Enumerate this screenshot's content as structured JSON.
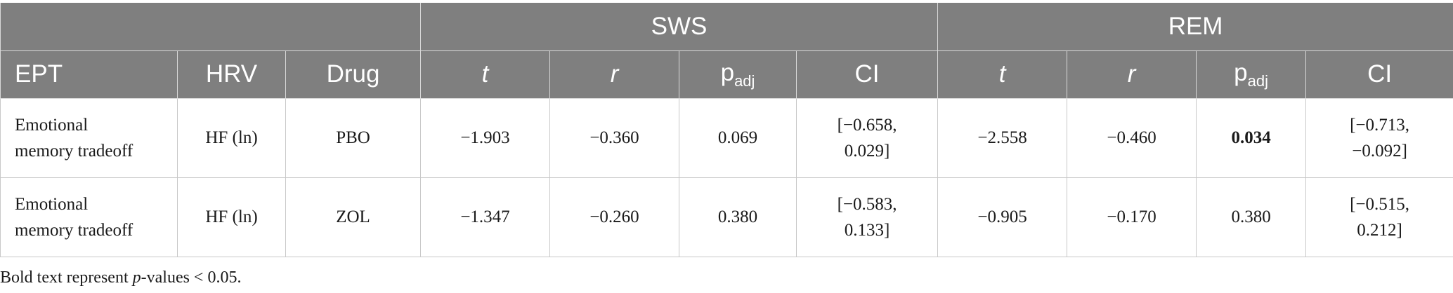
{
  "table": {
    "groups": {
      "sws": "SWS",
      "rem": "REM"
    },
    "headers": {
      "ept": "EPT",
      "hrv": "HRV",
      "drug": "Drug",
      "sws_t": "t",
      "sws_r": "r",
      "sws_p": "p",
      "sws_p_sub": "adj",
      "sws_ci": "CI",
      "rem_t": "t",
      "rem_r": "r",
      "rem_p": "p",
      "rem_p_sub": "adj",
      "rem_ci": "CI"
    },
    "rows": [
      {
        "ept_line1": "Emotional",
        "ept_line2": "memory tradeoff",
        "hrv": "HF (ln)",
        "drug": "PBO",
        "sws_t": "−1.903",
        "sws_r": "−0.360",
        "sws_p": "0.069",
        "sws_ci_line1": "[−0.658,",
        "sws_ci_line2": "0.029]",
        "rem_t": "−2.558",
        "rem_r": "−0.460",
        "rem_p": "0.034",
        "rem_ci_line1": "[−0.713,",
        "rem_ci_line2": "−0.092]"
      },
      {
        "ept_line1": "Emotional",
        "ept_line2": "memory tradeoff",
        "hrv": "HF (ln)",
        "drug": "ZOL",
        "sws_t": "−1.347",
        "sws_r": "−0.260",
        "sws_p": "0.380",
        "sws_ci_line1": "[−0.583,",
        "sws_ci_line2": "0.133]",
        "rem_t": "−0.905",
        "rem_r": "−0.170",
        "rem_p": "0.380",
        "rem_ci_line1": "[−0.515,",
        "rem_ci_line2": "0.212]"
      }
    ]
  },
  "footnote": {
    "prefix": "Bold text represent ",
    "italic": "p",
    "suffix": "-values < 0.05."
  },
  "colors": {
    "header_bg": "#7f7f7f",
    "header_text": "#ffffff",
    "body_text": "#1a1a1a"
  }
}
